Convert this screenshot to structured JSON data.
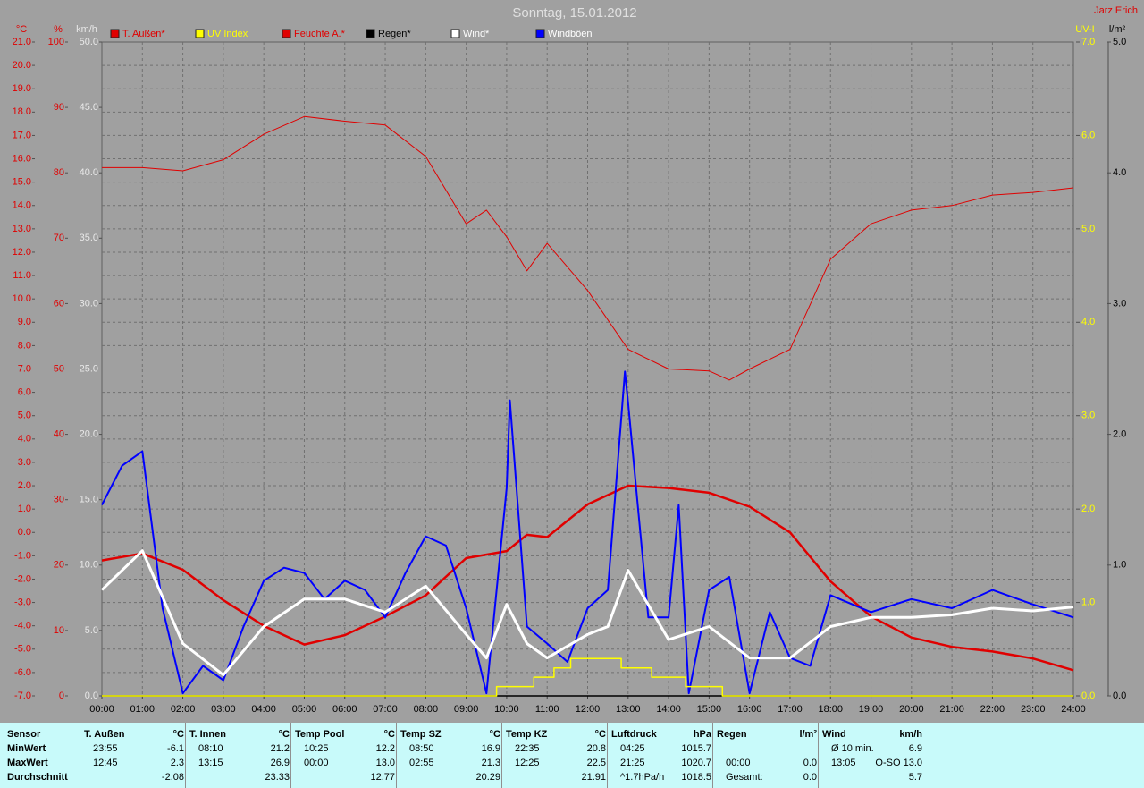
{
  "chart_data": {
    "type": "line",
    "title": "Sonntag, 15.01.2012",
    "author": "Jarz Erich",
    "xticks": [
      {
        "value": 0,
        "label": "00:00"
      },
      {
        "value": 1,
        "label": "01:00"
      },
      {
        "value": 2,
        "label": "02:00"
      },
      {
        "value": 3,
        "label": "03:00"
      },
      {
        "value": 4,
        "label": "04:00"
      },
      {
        "value": 5,
        "label": "05:00"
      },
      {
        "value": 6,
        "label": "06:00"
      },
      {
        "value": 7,
        "label": "07:00"
      },
      {
        "value": 8,
        "label": "08:00"
      },
      {
        "value": 9,
        "label": "09:00"
      },
      {
        "value": 10,
        "label": "10:00"
      },
      {
        "value": 11,
        "label": "11:00"
      },
      {
        "value": 12,
        "label": "12:00"
      },
      {
        "value": 13,
        "label": "13:00"
      },
      {
        "value": 14,
        "label": "14:00"
      },
      {
        "value": 15,
        "label": "15:00"
      },
      {
        "value": 16,
        "label": "16:00"
      },
      {
        "value": 17,
        "label": "17:00"
      },
      {
        "value": 18,
        "label": "18:00"
      },
      {
        "value": 19,
        "label": "19:00"
      },
      {
        "value": 20,
        "label": "20:00"
      },
      {
        "value": 21,
        "label": "21:00"
      },
      {
        "value": 22,
        "label": "22:00"
      },
      {
        "value": 23,
        "label": "23:00"
      },
      {
        "value": 24,
        "label": "24:00"
      }
    ],
    "xlim": [
      0,
      24
    ],
    "grid": true,
    "axes": {
      "temp": {
        "label": "°C",
        "color": "#e00000",
        "side": "left",
        "lim": [
          -7,
          21
        ],
        "ticks": [
          {
            "value": -7,
            "label": "-7.0"
          },
          {
            "value": -6,
            "label": "-6.0"
          },
          {
            "value": -5,
            "label": "-5.0"
          },
          {
            "value": -4,
            "label": "-4.0"
          },
          {
            "value": -3,
            "label": "-3.0"
          },
          {
            "value": -2,
            "label": "-2.0"
          },
          {
            "value": -1,
            "label": "-1.0"
          },
          {
            "value": 0,
            "label": "0.0"
          },
          {
            "value": 1,
            "label": "1.0"
          },
          {
            "value": 2,
            "label": "2.0"
          },
          {
            "value": 3,
            "label": "3.0"
          },
          {
            "value": 4,
            "label": "4.0"
          },
          {
            "value": 5,
            "label": "5.0"
          },
          {
            "value": 6,
            "label": "6.0"
          },
          {
            "value": 7,
            "label": "7.0"
          },
          {
            "value": 8,
            "label": "8.0"
          },
          {
            "value": 9,
            "label": "9.0"
          },
          {
            "value": 10,
            "label": "10.0"
          },
          {
            "value": 11,
            "label": "11.0"
          },
          {
            "value": 12,
            "label": "12.0"
          },
          {
            "value": 13,
            "label": "13.0"
          },
          {
            "value": 14,
            "label": "14.0"
          },
          {
            "value": 15,
            "label": "15.0"
          },
          {
            "value": 16,
            "label": "16.0"
          },
          {
            "value": 17,
            "label": "17.0"
          },
          {
            "value": 18,
            "label": "18.0"
          },
          {
            "value": 19,
            "label": "19.0"
          },
          {
            "value": 20,
            "label": "20.0"
          },
          {
            "value": 21,
            "label": "21.0"
          }
        ]
      },
      "hum": {
        "label": "%",
        "color": "#e00000",
        "side": "left",
        "lim": [
          0,
          100
        ],
        "ticks": [
          0,
          10,
          20,
          30,
          40,
          50,
          60,
          70,
          80,
          90,
          100
        ]
      },
      "wind": {
        "label": "km/h",
        "color": "#e8e8e8",
        "side": "left",
        "lim": [
          0,
          50
        ],
        "ticks": [
          {
            "value": 0,
            "label": "0.0"
          },
          {
            "value": 5,
            "label": "5.0"
          },
          {
            "value": 10,
            "label": "10.0"
          },
          {
            "value": 15,
            "label": "15.0"
          },
          {
            "value": 20,
            "label": "20.0"
          },
          {
            "value": 25,
            "label": "25.0"
          },
          {
            "value": 30,
            "label": "30.0"
          },
          {
            "value": 35,
            "label": "35.0"
          },
          {
            "value": 40,
            "label": "40.0"
          },
          {
            "value": 45,
            "label": "45.0"
          },
          {
            "value": 50,
            "label": "50.0"
          }
        ]
      },
      "uv": {
        "label": "UV-I",
        "color": "#ffff00",
        "side": "right",
        "lim": [
          0,
          7
        ],
        "ticks": [
          {
            "value": 0,
            "label": "0.0"
          },
          {
            "value": 1,
            "label": "1.0"
          },
          {
            "value": 2,
            "label": "2.0"
          },
          {
            "value": 3,
            "label": "3.0"
          },
          {
            "value": 4,
            "label": "4.0"
          },
          {
            "value": 5,
            "label": "5.0"
          },
          {
            "value": 6,
            "label": "6.0"
          },
          {
            "value": 7,
            "label": "7.0"
          }
        ]
      },
      "rain": {
        "label": "l/m²",
        "color": "#000000",
        "side": "right",
        "lim": [
          0,
          5
        ],
        "ticks": [
          {
            "value": 0,
            "label": "0.0"
          },
          {
            "value": 1,
            "label": "1.0"
          },
          {
            "value": 2,
            "label": "2.0"
          },
          {
            "value": 3,
            "label": "3.0"
          },
          {
            "value": 4,
            "label": "4.0"
          },
          {
            "value": 5,
            "label": "5.0"
          }
        ]
      }
    },
    "series": [
      {
        "name": "T. Außen*",
        "color": "#e00000",
        "legend_color": "#e00000",
        "axis": "temp",
        "width": 2.5,
        "x": [
          0,
          1,
          2,
          3,
          4,
          5,
          6,
          7,
          8,
          9,
          10,
          10.5,
          11,
          12,
          13,
          14,
          15,
          16,
          17,
          18,
          19,
          20,
          21,
          22,
          23,
          24
        ],
        "values": [
          -1.2,
          -0.9,
          -1.6,
          -2.9,
          -4.0,
          -4.8,
          -4.4,
          -3.6,
          -2.7,
          -1.1,
          -0.8,
          -0.1,
          -0.2,
          1.2,
          2.0,
          1.9,
          1.7,
          1.1,
          0.0,
          -2.1,
          -3.6,
          -4.5,
          -4.9,
          -5.1,
          -5.4,
          -5.9
        ]
      },
      {
        "name": "UV Index",
        "color": "#ffff00",
        "legend_color": "#ffff00",
        "axis": "uv",
        "width": 1.5,
        "x": [
          0,
          9.75,
          9.75,
          10.67,
          10.67,
          11.17,
          11.17,
          11.58,
          11.58,
          12.83,
          12.83,
          13.58,
          13.58,
          14.42,
          14.42,
          15.33,
          15.33,
          24
        ],
        "values": [
          0,
          0,
          0.1,
          0.1,
          0.2,
          0.2,
          0.3,
          0.3,
          0.4,
          0.4,
          0.3,
          0.3,
          0.2,
          0.2,
          0.1,
          0.1,
          0,
          0
        ]
      },
      {
        "name": "Feuchte A.*",
        "color": "#e00000",
        "legend_color": "#e00000",
        "axis": "hum",
        "width": 1,
        "x": [
          0,
          1,
          2,
          3,
          4,
          5,
          6,
          7,
          8,
          9,
          9.5,
          10,
          10.5,
          11,
          12,
          13,
          14,
          15,
          15.5,
          16,
          17,
          18,
          19,
          20,
          21,
          22,
          23,
          24
        ],
        "values": [
          80.8,
          80.8,
          80.3,
          82,
          85.9,
          88.6,
          87.9,
          87.3,
          82.5,
          72.2,
          74.3,
          70.2,
          65,
          69.2,
          62,
          53,
          50,
          49.7,
          48.3,
          50,
          53,
          66.8,
          72.2,
          74.3,
          75,
          76.6,
          77,
          77.7
        ]
      },
      {
        "name": "Regen*",
        "color": "#000000",
        "legend_color": "#000000",
        "axis": "rain",
        "width": 1.5,
        "x": [
          0,
          24
        ],
        "values": [
          0,
          0
        ]
      },
      {
        "name": "Wind*",
        "color": "#ffffff",
        "legend_color": "#ffffff",
        "axis": "wind",
        "width": 3,
        "x": [
          0,
          1,
          2,
          3,
          4,
          5,
          6,
          7,
          8,
          9,
          9.5,
          10,
          10.5,
          11,
          12,
          12.5,
          13,
          14,
          15,
          16,
          17,
          18,
          19,
          20,
          21,
          22,
          23,
          24
        ],
        "values": [
          8.1,
          11.1,
          4,
          1.6,
          5.3,
          7.4,
          7.4,
          6.4,
          8.4,
          4.7,
          2.9,
          7,
          4,
          2.9,
          4.7,
          5.3,
          9.6,
          4.3,
          5.3,
          2.9,
          2.9,
          5.3,
          6,
          6,
          6.2,
          6.7,
          6.5,
          6.8
        ]
      },
      {
        "name": "Windböen",
        "color": "#0000ff",
        "legend_color": "#ffffff",
        "axis": "wind",
        "width": 2,
        "x": [
          0,
          0.5,
          1,
          1.5,
          2,
          2.5,
          3,
          3.5,
          4,
          4.5,
          5,
          5.5,
          6,
          6.5,
          7,
          7.5,
          8,
          8.5,
          9,
          9.5,
          10,
          10.08,
          10.5,
          11,
          11.5,
          12,
          12.5,
          12.92,
          13,
          13.5,
          14,
          14.25,
          14.5,
          15,
          15.5,
          16,
          16.5,
          17,
          17.5,
          18,
          19,
          20,
          21,
          22,
          23,
          24
        ],
        "values": [
          14.6,
          17.6,
          18.7,
          6.7,
          0.2,
          2.3,
          1.2,
          5.3,
          8.8,
          9.8,
          9.4,
          7.4,
          8.8,
          8.1,
          6,
          9.4,
          12.2,
          11.5,
          6.7,
          0.2,
          15.9,
          22.6,
          5.3,
          4,
          2.6,
          6.7,
          8.1,
          24.8,
          22.4,
          6,
          6,
          14.6,
          0.2,
          8.1,
          9.1,
          0.2,
          6.4,
          2.9,
          2.3,
          7.7,
          6.4,
          7.4,
          6.7,
          8.1,
          7,
          6
        ]
      }
    ]
  },
  "table": {
    "row_labels": [
      "Sensor",
      "MinWert",
      "MaxWert",
      "Durchschnitt"
    ],
    "columns": [
      {
        "name": "T. Außen",
        "unit": "°C",
        "min": [
          "23:55",
          "-6.1"
        ],
        "max": [
          "12:45",
          "2.3"
        ],
        "avg": [
          "-2.08"
        ]
      },
      {
        "name": "T. Innen",
        "unit": "°C",
        "min": [
          "08:10",
          "21.2"
        ],
        "max": [
          "13:15",
          "26.9"
        ],
        "avg": [
          "23.33"
        ]
      },
      {
        "name": "Temp Pool",
        "unit": "°C",
        "min": [
          "10:25",
          "12.2"
        ],
        "max": [
          "00:00",
          "13.0"
        ],
        "avg": [
          "12.77"
        ]
      },
      {
        "name": "Temp SZ",
        "unit": "°C",
        "min": [
          "08:50",
          "16.9"
        ],
        "max": [
          "02:55",
          "21.3"
        ],
        "avg": [
          "20.29"
        ]
      },
      {
        "name": "Temp KZ",
        "unit": "°C",
        "min": [
          "22:35",
          "20.8"
        ],
        "max": [
          "12:25",
          "22.5"
        ],
        "avg": [
          "21.91"
        ]
      },
      {
        "name": "Luftdruck",
        "unit": "hPa",
        "min": [
          "04:25",
          "1015.7"
        ],
        "max": [
          "21:25",
          "1020.7"
        ],
        "avg": [
          "^1.7hPa/h",
          "1018.5"
        ]
      },
      {
        "name": "Regen",
        "unit": "l/m²",
        "max": [
          "00:00",
          "0.0"
        ],
        "avg": [
          "Gesamt:",
          "0.0"
        ]
      },
      {
        "name": "Wind",
        "unit": "km/h",
        "min": [
          "Ø 10 min.",
          "6.9"
        ],
        "max": [
          "13:05",
          "O-SO 13.0"
        ],
        "avg": [
          "5.7"
        ]
      }
    ]
  }
}
